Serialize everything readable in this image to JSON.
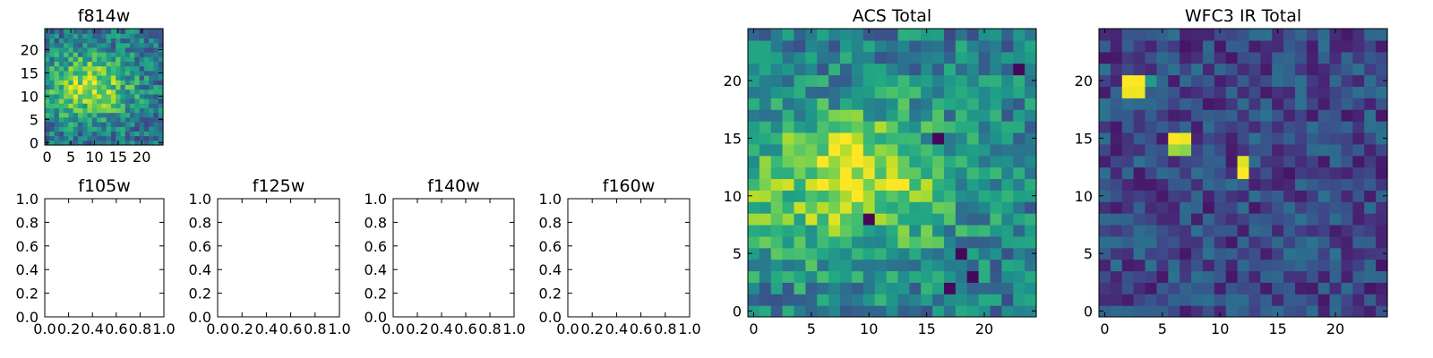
{
  "chart_data": [
    {
      "type": "heatmap",
      "title": "f814w",
      "colormap": "viridis",
      "x_ticks": [
        "0",
        "5",
        "10",
        "15",
        "20"
      ],
      "y_ticks": [
        "0",
        "5",
        "10",
        "15",
        "20"
      ],
      "xlim": [
        -0.5,
        24.5
      ],
      "ylim": [
        -0.5,
        24.5
      ],
      "grid": false,
      "pixels": "25x25 noisy intensity grid with a bright extended source centered near x=9, y=12"
    },
    {
      "type": "empty",
      "title": "f105w",
      "x_ticks": [
        "0.0",
        "0.2",
        "0.4",
        "0.6",
        "0.8",
        "1.0"
      ],
      "y_ticks": [
        "0.0",
        "0.2",
        "0.4",
        "0.6",
        "0.8",
        "1.0"
      ],
      "xlim": [
        0,
        1
      ],
      "ylim": [
        0,
        1
      ]
    },
    {
      "type": "empty",
      "title": "f125w",
      "x_ticks": [
        "0.0",
        "0.2",
        "0.4",
        "0.6",
        "0.8",
        "1.0"
      ],
      "y_ticks": [
        "0.0",
        "0.2",
        "0.4",
        "0.6",
        "0.8",
        "1.0"
      ],
      "xlim": [
        0,
        1
      ],
      "ylim": [
        0,
        1
      ]
    },
    {
      "type": "empty",
      "title": "f140w",
      "x_ticks": [
        "0.0",
        "0.2",
        "0.4",
        "0.6",
        "0.8",
        "1.0"
      ],
      "y_ticks": [
        "0.0",
        "0.2",
        "0.4",
        "0.6",
        "0.8",
        "1.0"
      ],
      "xlim": [
        0,
        1
      ],
      "ylim": [
        0,
        1
      ]
    },
    {
      "type": "empty",
      "title": "f160w",
      "x_ticks": [
        "0.0",
        "0.2",
        "0.4",
        "0.6",
        "0.8",
        "1.0"
      ],
      "y_ticks": [
        "0.0",
        "0.2",
        "0.4",
        "0.6",
        "0.8",
        "1.0"
      ],
      "xlim": [
        0,
        1
      ],
      "ylim": [
        0,
        1
      ]
    },
    {
      "type": "heatmap",
      "title": "ACS Total",
      "colormap": "viridis",
      "x_ticks": [
        "0",
        "5",
        "10",
        "15",
        "20"
      ],
      "y_ticks": [
        "0",
        "5",
        "10",
        "15",
        "20"
      ],
      "xlim": [
        -0.5,
        24.5
      ],
      "ylim": [
        -0.5,
        24.5
      ],
      "grid": false,
      "pixels": "25x25 noisy intensity grid with bright emission spanning x~0-16, y~5-15; peaks near (8,14) and (13,11)"
    },
    {
      "type": "heatmap",
      "title": "WFC3 IR Total",
      "colormap": "viridis",
      "x_ticks": [
        "0",
        "5",
        "10",
        "15",
        "20"
      ],
      "y_ticks": [
        "0",
        "5",
        "10",
        "15",
        "20"
      ],
      "xlim": [
        -0.5,
        24.5
      ],
      "ylim": [
        -0.5,
        24.5
      ],
      "grid": false,
      "pixels": "25x25 mostly dark noise grid with bright hot pixels near (2,20), (3,20), (6,15), (12,12)"
    }
  ]
}
